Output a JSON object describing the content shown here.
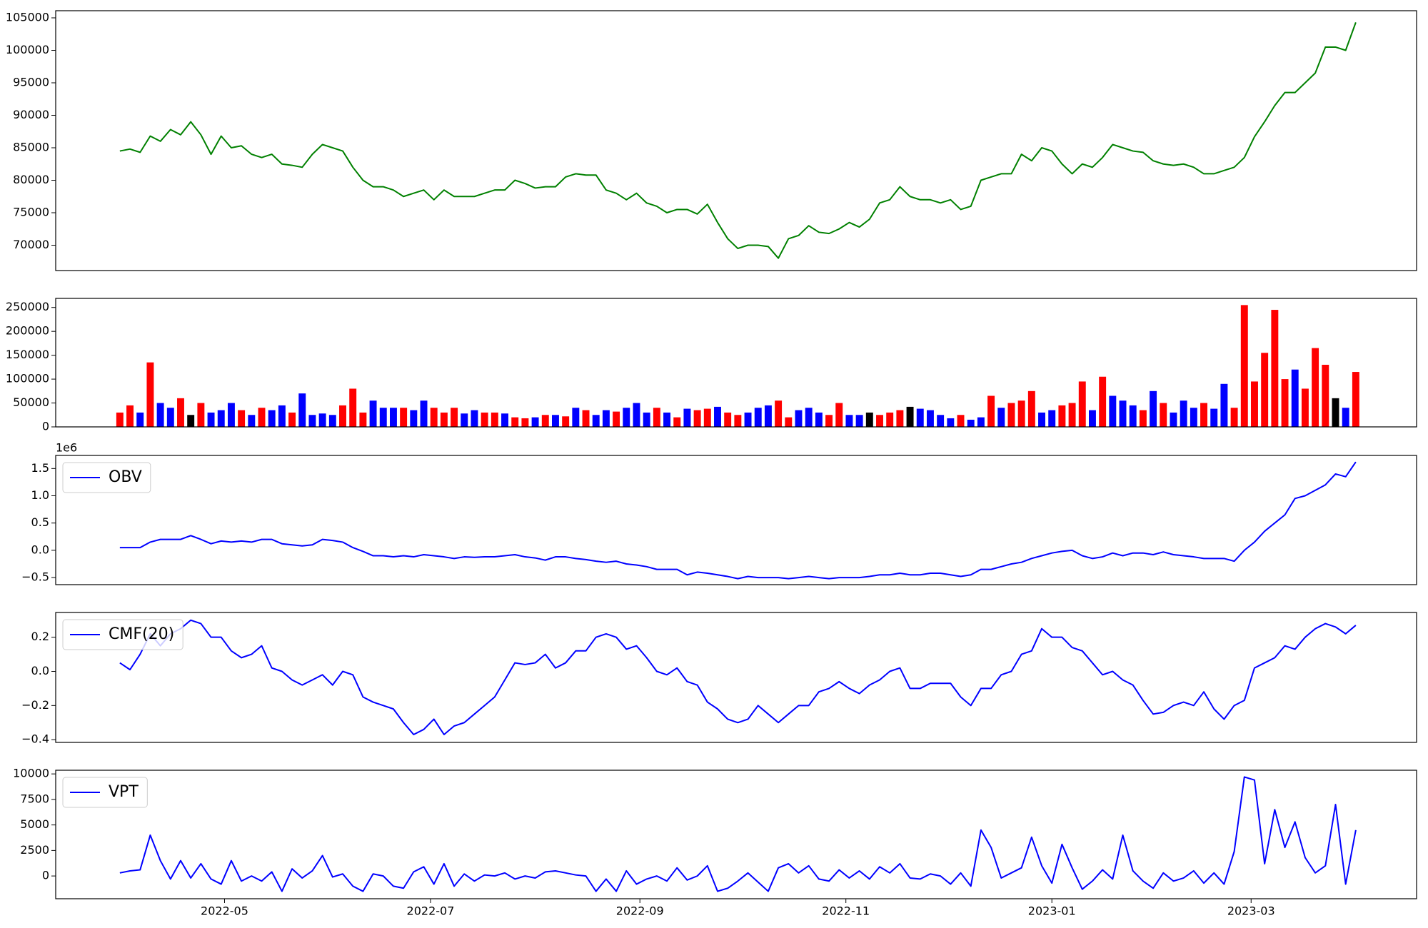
{
  "chart_data": {
    "x": [
      19082,
      19085,
      19088,
      19091,
      19094,
      19097,
      19100,
      19103,
      19106,
      19109,
      19112,
      19115,
      19118,
      19121,
      19124,
      19127,
      19130,
      19133,
      19136,
      19139,
      19142,
      19145,
      19148,
      19151,
      19154,
      19157,
      19160,
      19163,
      19166,
      19169,
      19172,
      19175,
      19178,
      19181,
      19184,
      19187,
      19190,
      19193,
      19196,
      19199,
      19202,
      19205,
      19208,
      19211,
      19214,
      19217,
      19220,
      19223,
      19226,
      19229,
      19232,
      19235,
      19238,
      19241,
      19244,
      19247,
      19250,
      19253,
      19256,
      19259,
      19262,
      19265,
      19268,
      19271,
      19274,
      19277,
      19280,
      19283,
      19286,
      19289,
      19292,
      19295,
      19298,
      19301,
      19304,
      19307,
      19310,
      19313,
      19316,
      19319,
      19322,
      19325,
      19328,
      19331,
      19334,
      19337,
      19340,
      19343,
      19346,
      19349,
      19352,
      19355,
      19358,
      19361,
      19364,
      19367,
      19370,
      19373,
      19376,
      19379,
      19382,
      19385,
      19388,
      19391,
      19394,
      19397,
      19400,
      19403,
      19406,
      19409,
      19412,
      19415,
      19418,
      19421,
      19424,
      19427,
      19430,
      19433,
      19436,
      19439,
      19442,
      19445,
      19448
    ],
    "xlim": [
      19063,
      19466
    ],
    "xticks": [
      {
        "value": 19113,
        "label": "2022-05"
      },
      {
        "value": 19174,
        "label": "2022-07"
      },
      {
        "value": 19236,
        "label": "2022-09"
      },
      {
        "value": 19297,
        "label": "2022-11"
      },
      {
        "value": 19358,
        "label": "2023-01"
      },
      {
        "value": 19417,
        "label": "2023-03"
      }
    ],
    "panels": [
      {
        "type": "line",
        "ylim": [
          66100,
          106100
        ],
        "yticks": [
          70000,
          75000,
          80000,
          85000,
          90000,
          95000,
          100000,
          105000
        ],
        "series": [
          {
            "color": "green",
            "values": [
              84500,
              84800,
              84300,
              86800,
              86000,
              87800,
              87000,
              89000,
              87000,
              84000,
              86800,
              85000,
              85300,
              84000,
              83500,
              84000,
              82500,
              82300,
              82000,
              84000,
              85500,
              85000,
              84500,
              82000,
              80000,
              79000,
              79000,
              78500,
              77500,
              78000,
              78500,
              77000,
              78500,
              77500,
              77500,
              77500,
              78000,
              78500,
              78500,
              80000,
              79500,
              78800,
              79000,
              79000,
              80500,
              81000,
              80800,
              80800,
              78500,
              78000,
              77000,
              78000,
              76500,
              76000,
              75000,
              75500,
              75500,
              74800,
              76300,
              73500,
              71000,
              69500,
              70000,
              70000,
              69800,
              68000,
              71000,
              71500,
              73000,
              72000,
              71800,
              72500,
              73500,
              72800,
              74000,
              76500,
              77000,
              79000,
              77500,
              77000,
              77000,
              76500,
              77000,
              75500,
              76000,
              80000,
              80500,
              81000,
              81000,
              84000,
              83000,
              85000,
              84500,
              82500,
              81000,
              82500,
              82000,
              83500,
              85500,
              85000,
              84500,
              84300,
              83000,
              82500,
              82300,
              82500,
              82000,
              81000,
              81000,
              81500,
              82000,
              83500,
              86700,
              89000,
              91500,
              93500,
              93500,
              95000,
              96500,
              100500,
              100500,
              100000,
              104300
            ]
          }
        ]
      },
      {
        "type": "bar",
        "ylim": [
          0,
          269000
        ],
        "yticks": [
          0,
          50000,
          100000,
          150000,
          200000,
          250000
        ],
        "values": [
          30000,
          45000,
          30000,
          135000,
          50000,
          40000,
          60000,
          25000,
          50000,
          30000,
          35000,
          50000,
          35000,
          25000,
          40000,
          35000,
          45000,
          30000,
          70000,
          25000,
          28000,
          25000,
          45000,
          80000,
          30000,
          55000,
          40000,
          40000,
          40000,
          35000,
          55000,
          40000,
          30000,
          40000,
          28000,
          35000,
          30000,
          30000,
          28000,
          20000,
          18000,
          20000,
          25000,
          25000,
          22000,
          40000,
          35000,
          25000,
          35000,
          32000,
          40000,
          50000,
          30000,
          40000,
          30000,
          20000,
          38000,
          35000,
          38000,
          42000,
          30000,
          25000,
          30000,
          40000,
          45000,
          55000,
          20000,
          35000,
          40000,
          30000,
          25000,
          50000,
          25000,
          25000,
          30000,
          25000,
          30000,
          35000,
          42000,
          38000,
          35000,
          25000,
          18000,
          25000,
          15000,
          20000,
          65000,
          40000,
          50000,
          55000,
          75000,
          30000,
          35000,
          45000,
          50000,
          95000,
          35000,
          105000,
          65000,
          55000,
          45000,
          35000,
          75000,
          50000,
          30000,
          55000,
          40000,
          50000,
          38000,
          90000,
          40000,
          255000,
          95000,
          155000,
          245000,
          100000,
          120000,
          80000,
          165000,
          130000,
          60000,
          40000,
          115000
        ],
        "colors": [
          "red",
          "red",
          "blue",
          "red",
          "blue",
          "blue",
          "red",
          "black",
          "red",
          "blue",
          "blue",
          "blue",
          "red",
          "blue",
          "red",
          "blue",
          "blue",
          "red",
          "blue",
          "blue",
          "blue",
          "blue",
          "red",
          "red",
          "red",
          "blue",
          "blue",
          "blue",
          "red",
          "blue",
          "blue",
          "red",
          "red",
          "red",
          "blue",
          "blue",
          "red",
          "red",
          "blue",
          "red",
          "red",
          "blue",
          "red",
          "blue",
          "red",
          "blue",
          "red",
          "blue",
          "blue",
          "red",
          "blue",
          "blue",
          "blue",
          "red",
          "blue",
          "red",
          "blue",
          "red",
          "red",
          "blue",
          "red",
          "red",
          "blue",
          "blue",
          "blue",
          "red",
          "red",
          "blue",
          "blue",
          "blue",
          "red",
          "red",
          "blue",
          "blue",
          "black",
          "red",
          "red",
          "red",
          "black",
          "blue",
          "blue",
          "blue",
          "blue",
          "red",
          "blue",
          "blue",
          "red",
          "blue",
          "red",
          "red",
          "red",
          "blue",
          "blue",
          "red",
          "red",
          "red",
          "blue",
          "red",
          "blue",
          "blue",
          "blue",
          "red",
          "blue",
          "red",
          "blue",
          "blue",
          "blue",
          "red",
          "blue",
          "blue",
          "red",
          "red",
          "red",
          "red",
          "red",
          "red",
          "blue",
          "red",
          "red",
          "red",
          "black",
          "blue",
          "red"
        ]
      },
      {
        "type": "line",
        "ylim": [
          -0.63,
          1.74
        ],
        "offset_text": "1e6",
        "legend": "upper left",
        "yticks": [
          {
            "value": -0.5,
            "label": "−0.5"
          },
          {
            "value": 0,
            "label": "0.0"
          },
          0.5,
          {
            "value": 1,
            "label": "1.0"
          },
          1.5
        ],
        "series": [
          {
            "name": "OBV",
            "color": "blue",
            "values": [
              0.05,
              0.05,
              0.05,
              0.15,
              0.2,
              0.2,
              0.2,
              0.27,
              0.2,
              0.12,
              0.17,
              0.15,
              0.17,
              0.15,
              0.2,
              0.2,
              0.12,
              0.1,
              0.08,
              0.1,
              0.2,
              0.18,
              0.15,
              0.05,
              -0.02,
              -0.1,
              -0.1,
              -0.12,
              -0.1,
              -0.12,
              -0.08,
              -0.1,
              -0.12,
              -0.15,
              -0.12,
              -0.13,
              -0.12,
              -0.12,
              -0.1,
              -0.08,
              -0.12,
              -0.14,
              -0.18,
              -0.12,
              -0.12,
              -0.15,
              -0.17,
              -0.2,
              -0.22,
              -0.2,
              -0.25,
              -0.27,
              -0.3,
              -0.35,
              -0.35,
              -0.35,
              -0.45,
              -0.4,
              -0.42,
              -0.45,
              -0.48,
              -0.52,
              -0.48,
              -0.5,
              -0.5,
              -0.5,
              -0.52,
              -0.5,
              -0.48,
              -0.5,
              -0.52,
              -0.5,
              -0.5,
              -0.5,
              -0.48,
              -0.45,
              -0.45,
              -0.42,
              -0.45,
              -0.45,
              -0.42,
              -0.42,
              -0.45,
              -0.48,
              -0.45,
              -0.35,
              -0.35,
              -0.3,
              -0.25,
              -0.22,
              -0.15,
              -0.1,
              -0.05,
              -0.02,
              0,
              -0.1,
              -0.15,
              -0.12,
              -0.05,
              -0.1,
              -0.05,
              -0.05,
              -0.08,
              -0.03,
              -0.08,
              -0.1,
              -0.12,
              -0.15,
              -0.15,
              -0.15,
              -0.2,
              0,
              0.15,
              0.35,
              0.5,
              0.65,
              0.95,
              1,
              1.1,
              1.2,
              1.4,
              1.35,
              1.62
            ]
          }
        ]
      },
      {
        "type": "line",
        "ylim": [
          -0.416,
          0.345
        ],
        "legend": "upper left",
        "yticks": [
          {
            "value": -0.4,
            "label": "−0.4"
          },
          {
            "value": -0.2,
            "label": "−0.2"
          },
          {
            "value": 0,
            "label": "0.0"
          },
          0.2
        ],
        "series": [
          {
            "name": "CMF(20)",
            "color": "blue",
            "values": [
              0.05,
              0.01,
              0.1,
              0.22,
              0.15,
              0.22,
              0.25,
              0.3,
              0.28,
              0.2,
              0.2,
              0.12,
              0.08,
              0.1,
              0.15,
              0.02,
              0,
              -0.05,
              -0.08,
              -0.05,
              -0.02,
              -0.08,
              0,
              -0.02,
              -0.15,
              -0.18,
              -0.2,
              -0.22,
              -0.3,
              -0.37,
              -0.34,
              -0.28,
              -0.37,
              -0.32,
              -0.3,
              -0.25,
              -0.2,
              -0.15,
              -0.05,
              0.05,
              0.04,
              0.05,
              0.1,
              0.02,
              0.05,
              0.12,
              0.12,
              0.2,
              0.22,
              0.2,
              0.13,
              0.15,
              0.08,
              0,
              -0.02,
              0.02,
              -0.06,
              -0.08,
              -0.18,
              -0.22,
              -0.28,
              -0.3,
              -0.28,
              -0.2,
              -0.25,
              -0.3,
              -0.25,
              -0.2,
              -0.2,
              -0.12,
              -0.1,
              -0.06,
              -0.1,
              -0.13,
              -0.08,
              -0.05,
              0,
              0.02,
              -0.1,
              -0.1,
              -0.07,
              -0.07,
              -0.07,
              -0.15,
              -0.2,
              -0.1,
              -0.1,
              -0.02,
              0,
              0.1,
              0.12,
              0.25,
              0.2,
              0.2,
              0.14,
              0.12,
              0.05,
              -0.02,
              0,
              -0.05,
              -0.08,
              -0.17,
              -0.25,
              -0.24,
              -0.2,
              -0.18,
              -0.2,
              -0.12,
              -0.22,
              -0.28,
              -0.2,
              -0.17,
              0.02,
              0.05,
              0.08,
              0.15,
              0.13,
              0.2,
              0.25,
              0.28,
              0.26,
              0.22,
              0.27
            ]
          }
        ]
      },
      {
        "type": "line",
        "ylim": [
          -2230,
          10360
        ],
        "legend": "upper left",
        "yticks": [
          0,
          2500,
          5000,
          7500,
          10000
        ],
        "series": [
          {
            "name": "VPT",
            "color": "blue",
            "values": [
              300,
              500,
              600,
              4000,
              1500,
              -300,
              1500,
              -200,
              1200,
              -300,
              -800,
              1500,
              -500,
              0,
              -500,
              400,
              -1500,
              700,
              -200,
              500,
              2000,
              -100,
              200,
              -1000,
              -1500,
              200,
              0,
              -1000,
              -1200,
              400,
              900,
              -800,
              1200,
              -1000,
              200,
              -500,
              100,
              0,
              300,
              -300,
              0,
              -200,
              400,
              500,
              300,
              100,
              0,
              -1500,
              -300,
              -1500,
              500,
              -800,
              -300,
              0,
              -500,
              800,
              -400,
              0,
              1000,
              -1500,
              -1200,
              -500,
              300,
              -600,
              -1500,
              800,
              1200,
              300,
              1000,
              -300,
              -500,
              600,
              -200,
              500,
              -300,
              900,
              300,
              1200,
              -200,
              -300,
              200,
              0,
              -800,
              300,
              -1000,
              4500,
              2800,
              -200,
              300,
              800,
              3800,
              1000,
              -700,
              3100,
              800,
              -1300,
              -500,
              600,
              -300,
              4000,
              500,
              -500,
              -1200,
              300,
              -500,
              -200,
              500,
              -700,
              300,
              -800,
              2400,
              9700,
              9400,
              1200,
              6500,
              2800,
              5300,
              1800,
              300,
              1000,
              7000,
              -800,
              4500
            ]
          }
        ]
      }
    ]
  }
}
